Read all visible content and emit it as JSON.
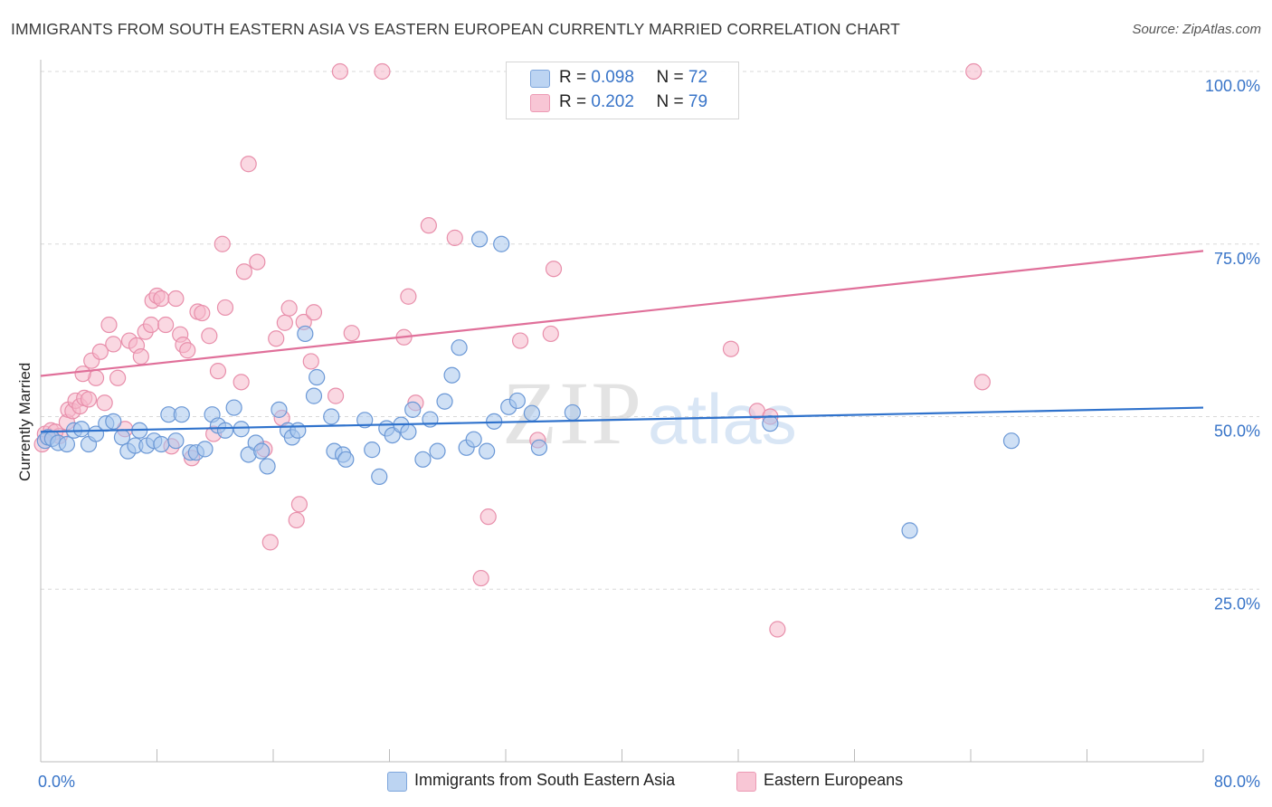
{
  "title": "IMMIGRANTS FROM SOUTH EASTERN ASIA VS EASTERN EUROPEAN CURRENTLY MARRIED CORRELATION CHART",
  "source": "Source: ZipAtlas.com",
  "watermark": {
    "zip": "ZIP",
    "atlas": "atlas"
  },
  "legend": {
    "r_label": "R =",
    "n_label": "N =",
    "series1": {
      "r": "0.098",
      "n": "72"
    },
    "series2": {
      "r": "0.202",
      "n": "79"
    }
  },
  "bottom_legend": {
    "series1": "Immigrants from South Eastern Asia",
    "series2": "Eastern Europeans"
  },
  "chart_data": {
    "type": "scatter",
    "title": "IMMIGRANTS FROM SOUTH EASTERN ASIA VS EASTERN EUROPEAN CURRENTLY MARRIED CORRELATION CHART",
    "xlabel": "",
    "ylabel": "Currently Married",
    "xlim": [
      0,
      80
    ],
    "ylim": [
      0,
      100
    ],
    "x_tick_labels": [
      "0.0%",
      "80.0%"
    ],
    "y_ticks": [
      25,
      50,
      75,
      100
    ],
    "y_tick_labels": [
      "25.0%",
      "50.0%",
      "75.0%",
      "100.0%"
    ],
    "colors": {
      "series1": "#a8c6ec",
      "series1_line": "#2f72cc",
      "series2": "#f5b8cb",
      "series2_line": "#e0709a",
      "tick_text": "#3874c8"
    },
    "series": [
      {
        "name": "Immigrants from South Eastern Asia",
        "trend": {
          "x0": 0,
          "y0": 47.8,
          "x1": 80,
          "y1": 51.3
        },
        "points": [
          [
            0.3,
            46.5
          ],
          [
            0.5,
            47.0
          ],
          [
            0.8,
            46.8
          ],
          [
            1.2,
            46.2
          ],
          [
            1.8,
            46.0
          ],
          [
            2.3,
            48.0
          ],
          [
            2.8,
            48.2
          ],
          [
            3.3,
            46.0
          ],
          [
            3.8,
            47.5
          ],
          [
            4.5,
            49.0
          ],
          [
            5.0,
            49.3
          ],
          [
            5.6,
            47.0
          ],
          [
            6.0,
            45.0
          ],
          [
            6.5,
            45.8
          ],
          [
            6.8,
            48.0
          ],
          [
            7.3,
            45.8
          ],
          [
            7.8,
            46.5
          ],
          [
            8.3,
            46.0
          ],
          [
            8.8,
            50.3
          ],
          [
            9.3,
            46.5
          ],
          [
            9.7,
            50.3
          ],
          [
            10.3,
            44.8
          ],
          [
            10.7,
            44.8
          ],
          [
            11.3,
            45.3
          ],
          [
            11.8,
            50.3
          ],
          [
            12.2,
            48.7
          ],
          [
            12.7,
            48.0
          ],
          [
            13.3,
            51.3
          ],
          [
            13.8,
            48.2
          ],
          [
            14.3,
            44.5
          ],
          [
            14.8,
            46.2
          ],
          [
            15.2,
            45.0
          ],
          [
            15.6,
            42.8
          ],
          [
            16.4,
            51.0
          ],
          [
            17.0,
            48.0
          ],
          [
            17.3,
            47.0
          ],
          [
            17.7,
            48.0
          ],
          [
            18.2,
            62.0
          ],
          [
            18.8,
            53.0
          ],
          [
            19.0,
            55.7
          ],
          [
            20.0,
            50.0
          ],
          [
            20.2,
            45.0
          ],
          [
            20.8,
            44.5
          ],
          [
            21.0,
            43.8
          ],
          [
            22.3,
            49.5
          ],
          [
            22.8,
            45.2
          ],
          [
            23.3,
            41.3
          ],
          [
            23.8,
            48.3
          ],
          [
            24.2,
            47.3
          ],
          [
            24.8,
            48.8
          ],
          [
            25.3,
            47.8
          ],
          [
            25.6,
            51.0
          ],
          [
            26.3,
            43.8
          ],
          [
            26.8,
            49.6
          ],
          [
            27.3,
            45.0
          ],
          [
            27.8,
            52.2
          ],
          [
            28.3,
            56.0
          ],
          [
            28.8,
            60.0
          ],
          [
            29.3,
            45.5
          ],
          [
            29.8,
            46.7
          ],
          [
            30.2,
            75.7
          ],
          [
            30.7,
            45.0
          ],
          [
            31.2,
            49.3
          ],
          [
            31.7,
            75.0
          ],
          [
            32.2,
            51.4
          ],
          [
            32.8,
            52.3
          ],
          [
            33.8,
            50.5
          ],
          [
            34.3,
            45.5
          ],
          [
            36.6,
            50.6
          ],
          [
            50.2,
            49.0
          ],
          [
            66.8,
            46.5
          ],
          [
            59.8,
            33.5
          ]
        ]
      },
      {
        "name": "Eastern Europeans",
        "trend": {
          "x0": 0,
          "y0": 55.9,
          "x1": 80,
          "y1": 74.0
        },
        "points": [
          [
            0.3,
            47.5
          ],
          [
            0.7,
            48.0
          ],
          [
            1.3,
            47.2
          ],
          [
            1.8,
            49.2
          ],
          [
            1.9,
            51.0
          ],
          [
            2.2,
            50.8
          ],
          [
            2.4,
            52.3
          ],
          [
            2.7,
            51.5
          ],
          [
            3.0,
            52.7
          ],
          [
            3.3,
            52.5
          ],
          [
            3.5,
            58.1
          ],
          [
            3.8,
            55.6
          ],
          [
            4.1,
            59.4
          ],
          [
            4.4,
            52.0
          ],
          [
            4.7,
            63.3
          ],
          [
            5.0,
            60.5
          ],
          [
            5.3,
            55.6
          ],
          [
            5.8,
            48.2
          ],
          [
            6.1,
            61.0
          ],
          [
            6.6,
            60.3
          ],
          [
            6.9,
            58.7
          ],
          [
            7.2,
            62.3
          ],
          [
            7.6,
            63.3
          ],
          [
            7.7,
            66.8
          ],
          [
            8.0,
            67.5
          ],
          [
            8.3,
            67.1
          ],
          [
            8.6,
            63.3
          ],
          [
            9.0,
            45.7
          ],
          [
            9.3,
            67.1
          ],
          [
            9.6,
            61.9
          ],
          [
            9.8,
            60.4
          ],
          [
            10.1,
            59.6
          ],
          [
            10.4,
            44.0
          ],
          [
            10.8,
            65.2
          ],
          [
            11.1,
            65.0
          ],
          [
            11.6,
            61.7
          ],
          [
            11.9,
            47.5
          ],
          [
            12.2,
            56.6
          ],
          [
            12.5,
            75.0
          ],
          [
            12.7,
            65.8
          ],
          [
            13.8,
            55.0
          ],
          [
            14.0,
            71.0
          ],
          [
            14.3,
            86.6
          ],
          [
            14.9,
            72.4
          ],
          [
            15.4,
            45.3
          ],
          [
            15.8,
            31.8
          ],
          [
            16.2,
            61.3
          ],
          [
            16.6,
            49.8
          ],
          [
            16.8,
            63.6
          ],
          [
            17.1,
            65.7
          ],
          [
            17.6,
            35.0
          ],
          [
            17.8,
            37.3
          ],
          [
            18.1,
            63.7
          ],
          [
            18.6,
            58.0
          ],
          [
            18.8,
            65.1
          ],
          [
            20.3,
            53.0
          ],
          [
            20.6,
            100.0
          ],
          [
            21.4,
            62.1
          ],
          [
            23.5,
            100.0
          ],
          [
            25.0,
            61.5
          ],
          [
            25.3,
            67.4
          ],
          [
            25.8,
            52.0
          ],
          [
            26.7,
            77.7
          ],
          [
            28.5,
            75.9
          ],
          [
            30.3,
            26.6
          ],
          [
            30.8,
            35.5
          ],
          [
            33.0,
            61.0
          ],
          [
            34.2,
            46.6
          ],
          [
            35.1,
            62.0
          ],
          [
            35.3,
            71.4
          ],
          [
            47.5,
            59.8
          ],
          [
            49.3,
            50.8
          ],
          [
            50.2,
            50.0
          ],
          [
            50.7,
            19.2
          ],
          [
            64.2,
            100.0
          ],
          [
            64.8,
            55.0
          ],
          [
            0.1,
            46.0
          ],
          [
            1.0,
            47.8
          ],
          [
            2.9,
            56.2
          ]
        ]
      }
    ]
  }
}
